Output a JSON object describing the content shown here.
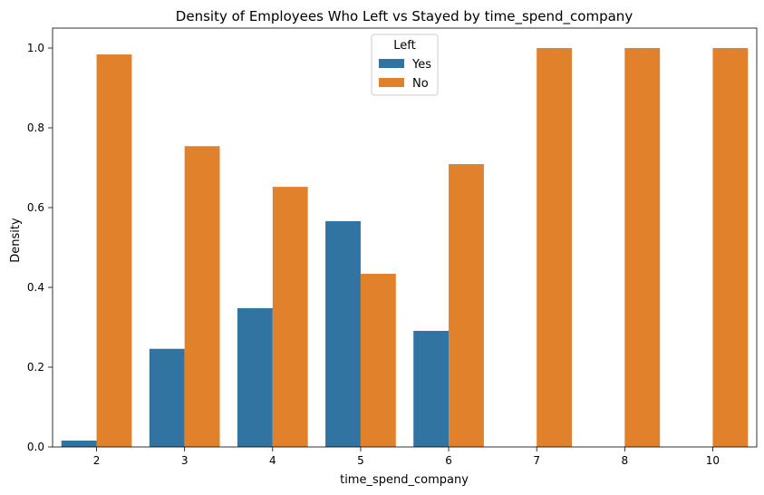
{
  "chart_data": {
    "type": "bar",
    "title": "Density of Employees Who Left vs Stayed by time_spend_company",
    "xlabel": "time_spend_company",
    "ylabel": "Density",
    "categories": [
      "2",
      "3",
      "4",
      "5",
      "6",
      "7",
      "8",
      "10"
    ],
    "series": [
      {
        "name": "Yes",
        "color": "#3274a1",
        "values": [
          0.016,
          0.246,
          0.348,
          0.566,
          0.291,
          0.0,
          0.0,
          0.0
        ]
      },
      {
        "name": "No",
        "color": "#e1812c",
        "values": [
          0.984,
          0.754,
          0.652,
          0.434,
          0.709,
          1.0,
          1.0,
          1.0
        ]
      }
    ],
    "ylim": [
      0,
      1.05
    ],
    "yticks": [
      "0.0",
      "0.2",
      "0.4",
      "0.6",
      "0.8",
      "1.0"
    ],
    "ytick_values": [
      0,
      0.2,
      0.4,
      0.6,
      0.8,
      1.0
    ],
    "legend": {
      "title": "Left",
      "position": "top-center"
    },
    "grid": false
  }
}
